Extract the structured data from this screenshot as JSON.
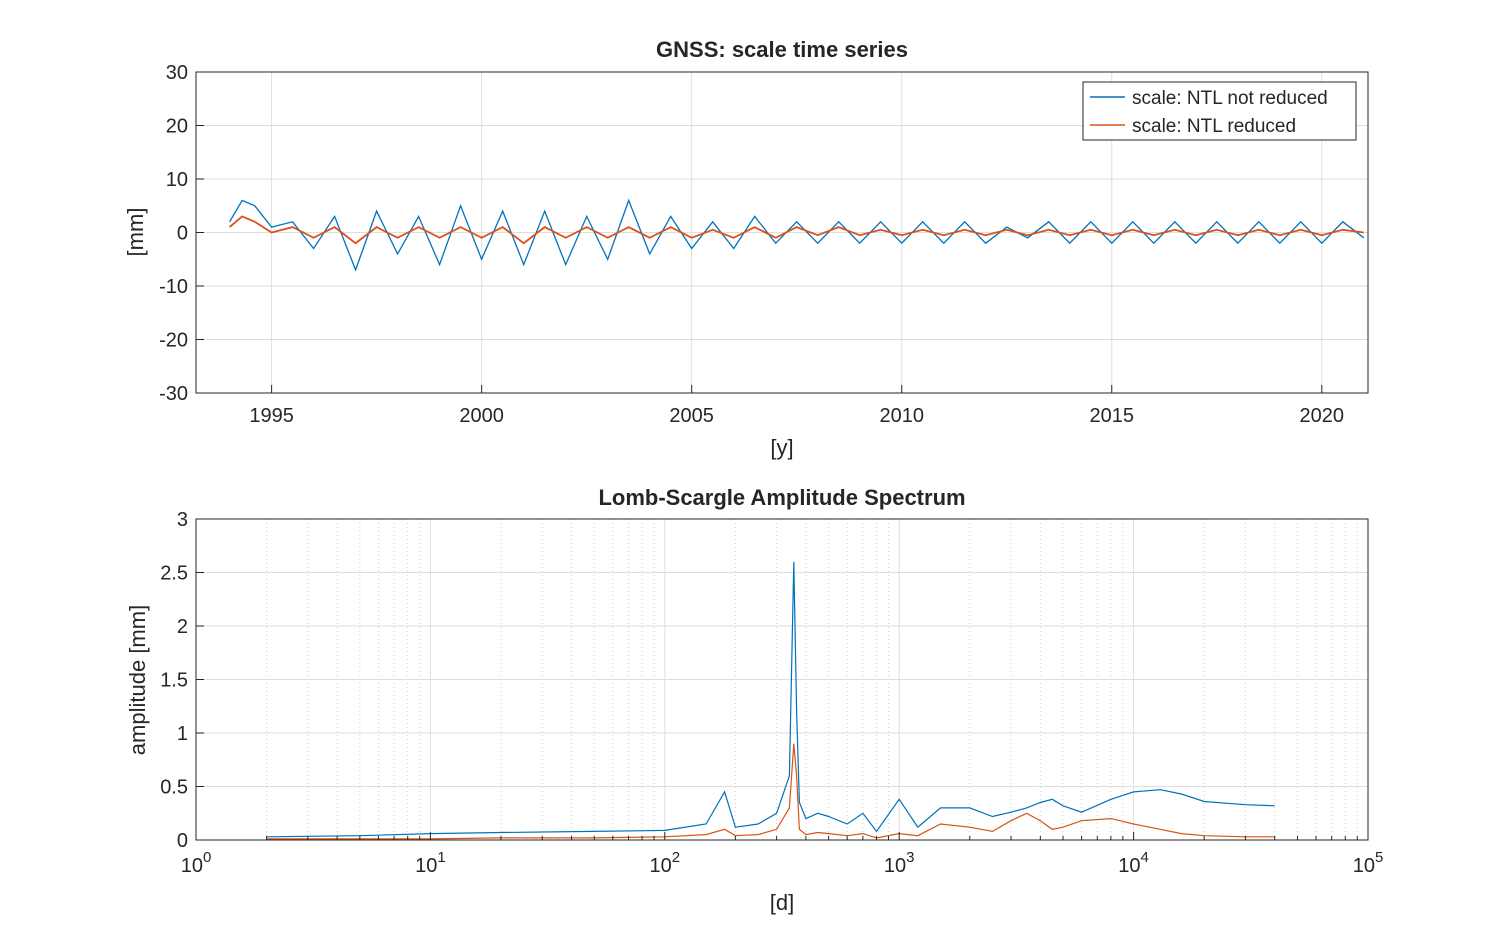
{
  "chart_data": [
    {
      "type": "line",
      "title": "GNSS: scale time series",
      "xlabel": "[y]",
      "ylabel": "[mm]",
      "xlim": [
        1993.2,
        2021.1
      ],
      "ylim": [
        -30,
        30
      ],
      "xticks": [
        1995,
        2000,
        2005,
        2010,
        2015,
        2020
      ],
      "yticks": [
        -30,
        -20,
        -10,
        0,
        10,
        20,
        30
      ],
      "grid": true,
      "legend_position": "top-right",
      "series": [
        {
          "name": "scale: NTL not reduced",
          "color": "#0072BD",
          "x": [
            1994.0,
            1994.3,
            1994.6,
            1995.0,
            1995.5,
            1996.0,
            1996.5,
            1997.0,
            1997.5,
            1998.0,
            1998.5,
            1999.0,
            1999.5,
            2000.0,
            2000.5,
            2001.0,
            2001.5,
            2002.0,
            2002.5,
            2003.0,
            2003.5,
            2004.0,
            2004.5,
            2005.0,
            2005.5,
            2006.0,
            2006.5,
            2007.0,
            2007.5,
            2008.0,
            2008.5,
            2009.0,
            2009.5,
            2010.0,
            2010.5,
            2011.0,
            2011.5,
            2012.0,
            2012.5,
            2013.0,
            2013.5,
            2014.0,
            2014.5,
            2015.0,
            2015.5,
            2016.0,
            2016.5,
            2017.0,
            2017.5,
            2018.0,
            2018.5,
            2019.0,
            2019.5,
            2020.0,
            2020.5,
            2021.0
          ],
          "y": [
            2,
            6,
            5,
            1,
            2,
            -3,
            3,
            -7,
            4,
            -4,
            3,
            -6,
            5,
            -5,
            4,
            -6,
            4,
            -6,
            3,
            -5,
            6,
            -4,
            3,
            -3,
            2,
            -3,
            3,
            -2,
            2,
            -2,
            2,
            -2,
            2,
            -2,
            2,
            -2,
            2,
            -2,
            1,
            -1,
            2,
            -2,
            2,
            -2,
            2,
            -2,
            2,
            -2,
            2,
            -2,
            2,
            -2,
            2,
            -2,
            2,
            -1
          ]
        },
        {
          "name": "scale: NTL reduced",
          "color": "#D95319",
          "x": [
            1994.0,
            1994.3,
            1994.6,
            1995.0,
            1995.5,
            1996.0,
            1996.5,
            1997.0,
            1997.5,
            1998.0,
            1998.5,
            1999.0,
            1999.5,
            2000.0,
            2000.5,
            2001.0,
            2001.5,
            2002.0,
            2002.5,
            2003.0,
            2003.5,
            2004.0,
            2004.5,
            2005.0,
            2005.5,
            2006.0,
            2006.5,
            2007.0,
            2007.5,
            2008.0,
            2008.5,
            2009.0,
            2009.5,
            2010.0,
            2010.5,
            2011.0,
            2011.5,
            2012.0,
            2012.5,
            2013.0,
            2013.5,
            2014.0,
            2014.5,
            2015.0,
            2015.5,
            2016.0,
            2016.5,
            2017.0,
            2017.5,
            2018.0,
            2018.5,
            2019.0,
            2019.5,
            2020.0,
            2020.5,
            2021.0
          ],
          "y": [
            1,
            3,
            2,
            0,
            1,
            -1,
            1,
            -2,
            1,
            -1,
            1,
            -1,
            1,
            -1,
            1,
            -2,
            1,
            -1,
            1,
            -1,
            1,
            -1,
            1,
            -1,
            0.5,
            -1,
            1,
            -1,
            1,
            -0.5,
            1,
            -0.5,
            0.5,
            -0.5,
            0.5,
            -0.5,
            0.5,
            -0.5,
            0.5,
            -0.5,
            0.5,
            -0.5,
            0.5,
            -0.5,
            0.5,
            -0.5,
            0.5,
            -0.5,
            0.5,
            -0.5,
            0.5,
            -0.5,
            0.5,
            -0.5,
            0.5,
            0
          ]
        }
      ]
    },
    {
      "type": "line",
      "title": "Lomb-Scargle Amplitude Spectrum",
      "xlabel": "[d]",
      "ylabel": "amplitude [mm]",
      "xscale": "log",
      "xlim": [
        1,
        100000
      ],
      "ylim": [
        0,
        3
      ],
      "xticks": [
        "10^0",
        "10^1",
        "10^2",
        "10^3",
        "10^4",
        "10^5"
      ],
      "yticks": [
        0,
        0.5,
        1,
        1.5,
        2,
        2.5,
        3
      ],
      "grid": true,
      "series": [
        {
          "color": "#0072BD",
          "x": [
            2,
            5,
            10,
            20,
            50,
            100,
            150,
            180,
            200,
            250,
            300,
            340,
            355,
            365,
            375,
            400,
            450,
            500,
            600,
            700,
            800,
            1000,
            1200,
            1500,
            2000,
            2500,
            3000,
            3500,
            4000,
            4500,
            5000,
            6000,
            8000,
            10000,
            13000,
            16000,
            20000,
            30000,
            40000
          ],
          "y": [
            0.03,
            0.04,
            0.06,
            0.07,
            0.08,
            0.09,
            0.15,
            0.45,
            0.12,
            0.15,
            0.25,
            0.6,
            2.6,
            1.2,
            0.35,
            0.2,
            0.25,
            0.22,
            0.15,
            0.25,
            0.08,
            0.38,
            0.12,
            0.3,
            0.3,
            0.22,
            0.26,
            0.3,
            0.35,
            0.38,
            0.32,
            0.26,
            0.38,
            0.45,
            0.47,
            0.43,
            0.36,
            0.33,
            0.32
          ]
        },
        {
          "color": "#D95319",
          "x": [
            2,
            5,
            10,
            20,
            50,
            100,
            150,
            180,
            200,
            250,
            300,
            340,
            355,
            365,
            375,
            400,
            450,
            500,
            600,
            700,
            800,
            1000,
            1200,
            1500,
            2000,
            2500,
            3000,
            3500,
            4000,
            4500,
            5000,
            6000,
            8000,
            10000,
            13000,
            16000,
            20000,
            30000,
            40000
          ],
          "y": [
            0.01,
            0.01,
            0.01,
            0.02,
            0.02,
            0.03,
            0.05,
            0.1,
            0.04,
            0.05,
            0.1,
            0.3,
            0.9,
            0.6,
            0.1,
            0.05,
            0.07,
            0.06,
            0.04,
            0.06,
            0.02,
            0.06,
            0.04,
            0.15,
            0.12,
            0.08,
            0.18,
            0.25,
            0.18,
            0.1,
            0.12,
            0.18,
            0.2,
            0.15,
            0.1,
            0.06,
            0.04,
            0.03,
            0.03
          ]
        }
      ]
    }
  ]
}
